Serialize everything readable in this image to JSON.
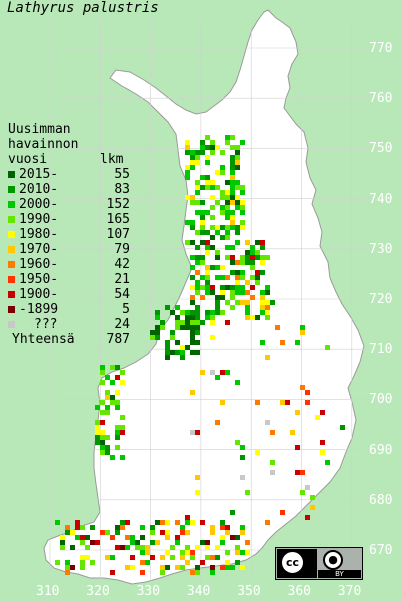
{
  "title": "Lathyrus palustris",
  "legend": {
    "header_lines": [
      "Uusimman",
      "havainnon",
      "vuosi"
    ],
    "count_header": "lkm",
    "entries": [
      {
        "label": "2015-",
        "count": "55",
        "color": "#006400"
      },
      {
        "label": "2010-",
        "count": "83",
        "color": "#009600"
      },
      {
        "label": "2000-",
        "count": "152",
        "color": "#00c800"
      },
      {
        "label": "1990-",
        "count": "165",
        "color": "#64e600"
      },
      {
        "label": "1980-",
        "count": "107",
        "color": "#ffff00"
      },
      {
        "label": "1970-",
        "count": "79",
        "color": "#ffc800"
      },
      {
        "label": "1960-",
        "count": "42",
        "color": "#ff7800"
      },
      {
        "label": "1950-",
        "count": "21",
        "color": "#ff3200"
      },
      {
        "label": "1900-",
        "count": "54",
        "color": "#c80000"
      },
      {
        "label": "-1899",
        "count": "5",
        "color": "#780000"
      },
      {
        "label": "???",
        "count": "24",
        "color": "#c8c8c8"
      }
    ],
    "total_label": "Yhteensä",
    "total_count": "787"
  },
  "grid": {
    "northing_labels": [
      "770",
      "760",
      "750",
      "740",
      "730",
      "720",
      "710",
      "700",
      "690",
      "680",
      "670"
    ],
    "easting_labels": [
      "310",
      "320",
      "330",
      "340",
      "350",
      "360",
      "370"
    ]
  },
  "license": {
    "cc": "cc",
    "by": "BY"
  },
  "colors": {
    "background": "#b8e8b8",
    "land": "#ffffff",
    "border": "#9a9a9a"
  }
}
